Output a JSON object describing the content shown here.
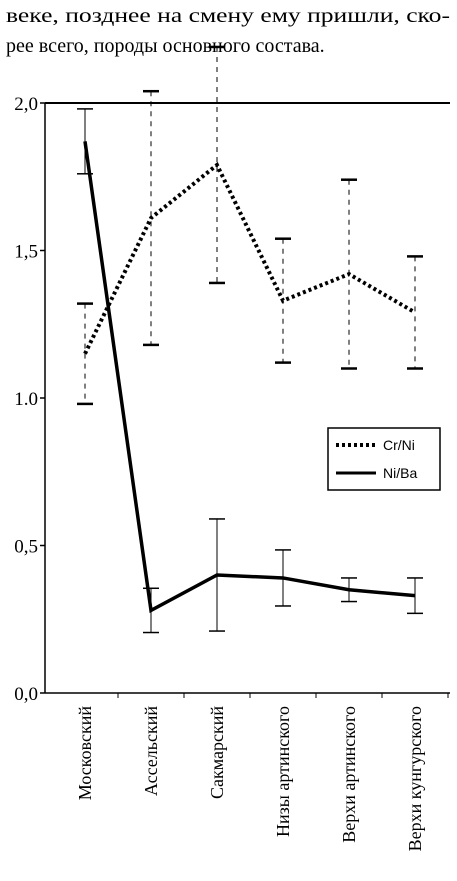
{
  "text_lines": [
    "веке, позднее на смену ему пришли, ско-",
    "рее всего, породы основного состава."
  ],
  "chart_data": {
    "type": "line",
    "categories": [
      "Московский",
      "Ассельский",
      "Сакмарский",
      "Низы артинского",
      "Верхи артинского",
      "Верхи кунгурского"
    ],
    "series": [
      {
        "name": "Cr/Ni",
        "color": "#000000",
        "style": "dotted",
        "values": [
          1.15,
          1.61,
          1.79,
          1.33,
          1.42,
          1.29
        ],
        "errors": [
          0.17,
          0.43,
          0.4,
          0.21,
          0.32,
          0.19
        ]
      },
      {
        "name": "Ni/Ba",
        "color": "#000000",
        "style": "solid",
        "values": [
          1.87,
          0.28,
          0.4,
          0.39,
          0.35,
          0.33
        ],
        "errors": [
          0.11,
          0.075,
          0.19,
          0.095,
          0.04,
          0.06
        ]
      }
    ],
    "ylim": [
      0,
      2
    ],
    "yticks": [
      {
        "value": 0,
        "label": "0,0"
      },
      {
        "value": 0.5,
        "label": "0,5"
      },
      {
        "value": 1,
        "label": "1.0"
      },
      {
        "value": 1.5,
        "label": "1,5"
      },
      {
        "value": 2,
        "label": "2,0"
      }
    ],
    "legend": "center right"
  }
}
